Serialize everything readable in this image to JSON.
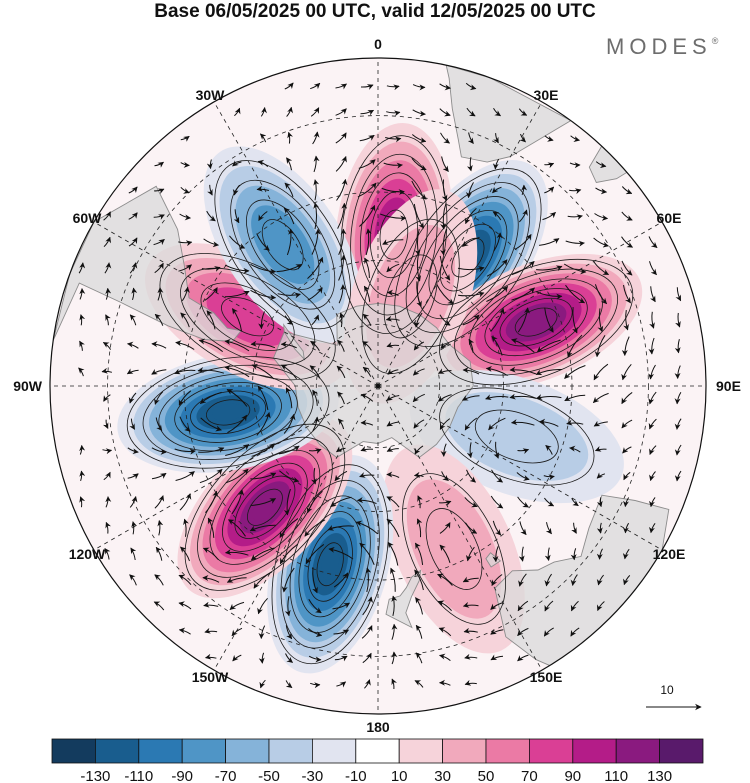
{
  "title": "Base 06/05/2025 00 UTC, valid 12/05/2025 00 UTC",
  "brand": "MODES",
  "brand_mark": "®",
  "map": {
    "projection": "south-polar-stereographic",
    "longitude_labels": [
      "0",
      "30E",
      "60E",
      "90E",
      "120E",
      "150E",
      "180",
      "150W",
      "120W",
      "90W",
      "60W",
      "30W"
    ],
    "reference_vector_label": "10",
    "land_color": "#d9d9d9",
    "coastline_color": "#8c8c8c",
    "grid_color": "#222222"
  },
  "anomaly_centers": [
    {
      "lon": 6,
      "lat": -54,
      "sign": "positive",
      "value": 105
    },
    {
      "lon": 35,
      "lat": -53,
      "sign": "negative",
      "value": -115
    },
    {
      "lon": 68,
      "lat": -50,
      "sign": "positive",
      "value": 125
    },
    {
      "lon": 110,
      "lat": -55,
      "sign": "negative",
      "value": -45
    },
    {
      "lon": 155,
      "lat": -48,
      "sign": "positive",
      "value": 45
    },
    {
      "lon": -165,
      "lat": -47,
      "sign": "negative",
      "value": -115
    },
    {
      "lon": -137,
      "lat": -51,
      "sign": "positive",
      "value": 125
    },
    {
      "lon": -100,
      "lat": -54,
      "sign": "negative",
      "value": -115
    },
    {
      "lon": -62,
      "lat": -55,
      "sign": "positive",
      "value": 85
    },
    {
      "lon": -34,
      "lat": -50,
      "sign": "negative",
      "value": -85
    },
    {
      "lon": 20,
      "lat": -67,
      "sign": "positive",
      "value": 35
    }
  ],
  "colorbar": {
    "labels": [
      "-130",
      "-110",
      "-90",
      "-70",
      "-50",
      "-30",
      "-10",
      "10",
      "30",
      "50",
      "70",
      "90",
      "110",
      "130"
    ],
    "colors": [
      "#133b5e",
      "#195d8e",
      "#2b79b3",
      "#4f95c6",
      "#85b3d9",
      "#b8cde6",
      "#e1e4f0",
      "#ffffff",
      "#f6d3da",
      "#f1a9bc",
      "#eb7aa5",
      "#da3f95",
      "#b41c88",
      "#8a1a7f",
      "#591a6b"
    ]
  }
}
